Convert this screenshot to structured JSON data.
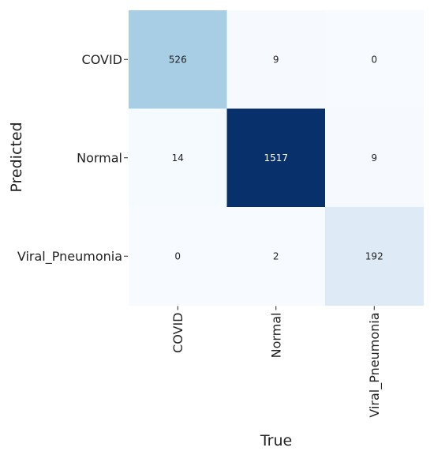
{
  "chart_data": {
    "type": "heatmap",
    "title": "",
    "xlabel": "True",
    "ylabel": "Predicted",
    "x_categories": [
      "COVID",
      "Normal",
      "Viral_Pneumonia"
    ],
    "y_categories": [
      "COVID",
      "Normal",
      "Viral_Pneumonia"
    ],
    "values": [
      [
        526,
        9,
        0
      ],
      [
        14,
        1517,
        9
      ],
      [
        0,
        2,
        192
      ]
    ],
    "colormap": "Blues",
    "vmin": 0,
    "vmax": 1517,
    "colorbar": false,
    "grid": false
  }
}
